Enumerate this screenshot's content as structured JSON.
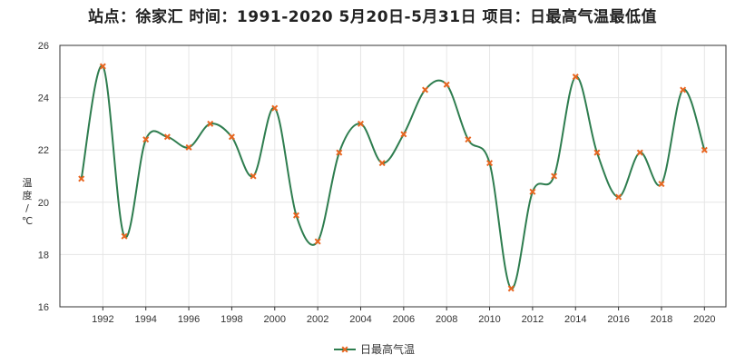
{
  "colors": {
    "line": "#2e7d4f",
    "marker": "#e8651f",
    "grid": "#e6e6e6",
    "plot_border": "#333333"
  },
  "chart_data": {
    "type": "line",
    "title": "站点：徐家汇 时间：1991-2020  5月20日-5月31日 项目：日最高气温最低值",
    "ylabel": "温度/℃",
    "ylabel_chars": [
      "温",
      "度",
      "/",
      "℃"
    ],
    "xlabel": "",
    "ylim": [
      16,
      26
    ],
    "yticks": [
      16,
      18,
      20,
      22,
      24,
      26
    ],
    "xlim": [
      1990,
      2021
    ],
    "xticks": [
      1992,
      1994,
      1996,
      1998,
      2000,
      2002,
      2004,
      2006,
      2008,
      2010,
      2012,
      2014,
      2016,
      2018,
      2020
    ],
    "grid": true,
    "smooth": true,
    "legend_position": "bottom-center",
    "series": [
      {
        "name": "日最高气温",
        "x": [
          1991,
          1992,
          1993,
          1994,
          1995,
          1996,
          1997,
          1998,
          1999,
          2000,
          2001,
          2002,
          2003,
          2004,
          2005,
          2006,
          2007,
          2008,
          2009,
          2010,
          2011,
          2012,
          2013,
          2014,
          2015,
          2016,
          2017,
          2018,
          2019,
          2020
        ],
        "values": [
          20.9,
          25.2,
          18.7,
          22.4,
          22.5,
          22.1,
          23.0,
          22.5,
          21.0,
          23.6,
          19.5,
          18.5,
          21.9,
          23.0,
          21.5,
          22.6,
          24.3,
          24.5,
          22.4,
          21.5,
          16.7,
          20.4,
          21.0,
          24.8,
          21.9,
          20.2,
          21.9,
          20.7,
          24.3,
          22.0
        ]
      }
    ]
  }
}
